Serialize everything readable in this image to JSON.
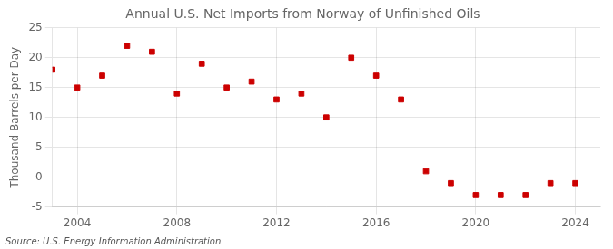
{
  "chart_data": {
    "type": "scatter",
    "title": "Annual U.S. Net Imports from Norway of Unfinished Oils",
    "ylabel": "Thousand Barrels per Day",
    "annotations": [
      "Source: U.S. Energy Information Administration"
    ],
    "x": [
      2003,
      2004,
      2005,
      2006,
      2007,
      2008,
      2009,
      2010,
      2011,
      2012,
      2013,
      2014,
      2015,
      2016,
      2017,
      2018,
      2019,
      2020,
      2021,
      2022,
      2023,
      2024
    ],
    "values": [
      18,
      15,
      17,
      22,
      21,
      14,
      19,
      15,
      16,
      13,
      14,
      10,
      20,
      17,
      13,
      1,
      -1,
      -3,
      -3,
      -3,
      -1,
      -1
    ],
    "color": "#cc0000",
    "marker": "square",
    "xlim": [
      2003,
      2025
    ],
    "xticks": [
      2004,
      2008,
      2012,
      2016,
      2020,
      2024
    ],
    "ylim": [
      -5,
      25
    ],
    "yticks": [
      -5,
      0,
      5,
      10,
      15,
      20,
      25
    ],
    "grid": true
  }
}
